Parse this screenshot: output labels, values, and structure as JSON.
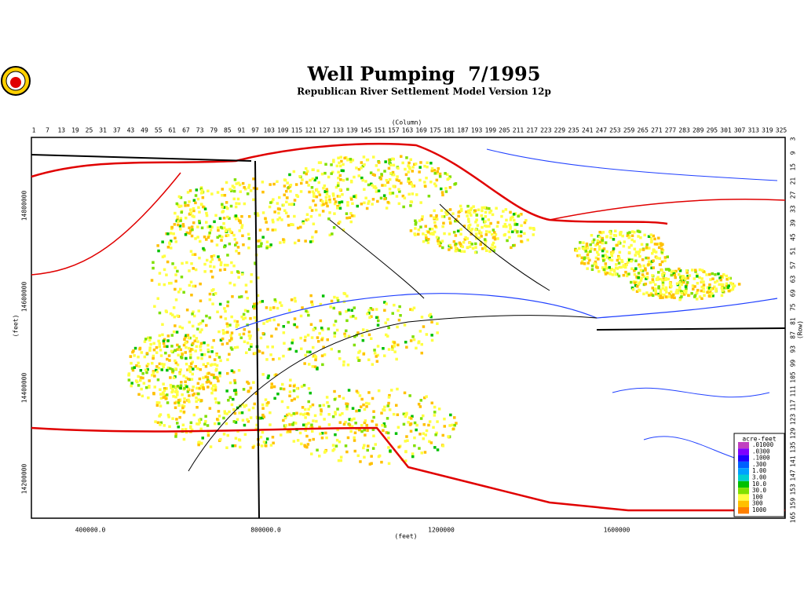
{
  "header": {
    "title": "Well Pumping  7/1995",
    "subtitle": "Republican River Settlement Model Version 12p"
  },
  "top_axis": {
    "label": "(Column)",
    "ticks": [
      1,
      7,
      13,
      19,
      25,
      31,
      37,
      43,
      49,
      55,
      61,
      67,
      73,
      79,
      85,
      91,
      97,
      103,
      109,
      115,
      121,
      127,
      133,
      139,
      145,
      151,
      157,
      163,
      169,
      175,
      181,
      187,
      193,
      199,
      205,
      211,
      217,
      223,
      229,
      235,
      241,
      247,
      253,
      259,
      265,
      271,
      277,
      283,
      289,
      295,
      301,
      307,
      313,
      319,
      325
    ]
  },
  "right_axis": {
    "label": "(Row)",
    "ticks": [
      3,
      9,
      15,
      21,
      27,
      33,
      39,
      45,
      51,
      57,
      63,
      69,
      75,
      81,
      87,
      93,
      99,
      105,
      111,
      117,
      123,
      129,
      135,
      141,
      147,
      153,
      159,
      165
    ]
  },
  "left_axis": {
    "label": "(feet)",
    "ticks": [
      "14800000",
      "14600000",
      "14400000",
      "14200000"
    ]
  },
  "bottom_axis": {
    "label": "(feet)",
    "ticks": [
      "400000.0",
      "800000.0",
      "1200000",
      "1600000"
    ]
  },
  "legend": {
    "title": "acre-feet",
    "items": [
      {
        "label": ".01000",
        "color": "#c040c0"
      },
      {
        "label": ".0300",
        "color": "#8000ff"
      },
      {
        "label": ".1000",
        "color": "#2000ff"
      },
      {
        "label": ".300",
        "color": "#0060ff"
      },
      {
        "label": "1.00",
        "color": "#00a0ff"
      },
      {
        "label": "3.00",
        "color": "#00d0d0"
      },
      {
        "label": "10.0",
        "color": "#00c000"
      },
      {
        "label": "30.0",
        "color": "#80e000"
      },
      {
        "label": "100",
        "color": "#ffff40"
      },
      {
        "label": "300",
        "color": "#ffc000"
      },
      {
        "label": "1000",
        "color": "#ff8000"
      }
    ]
  }
}
